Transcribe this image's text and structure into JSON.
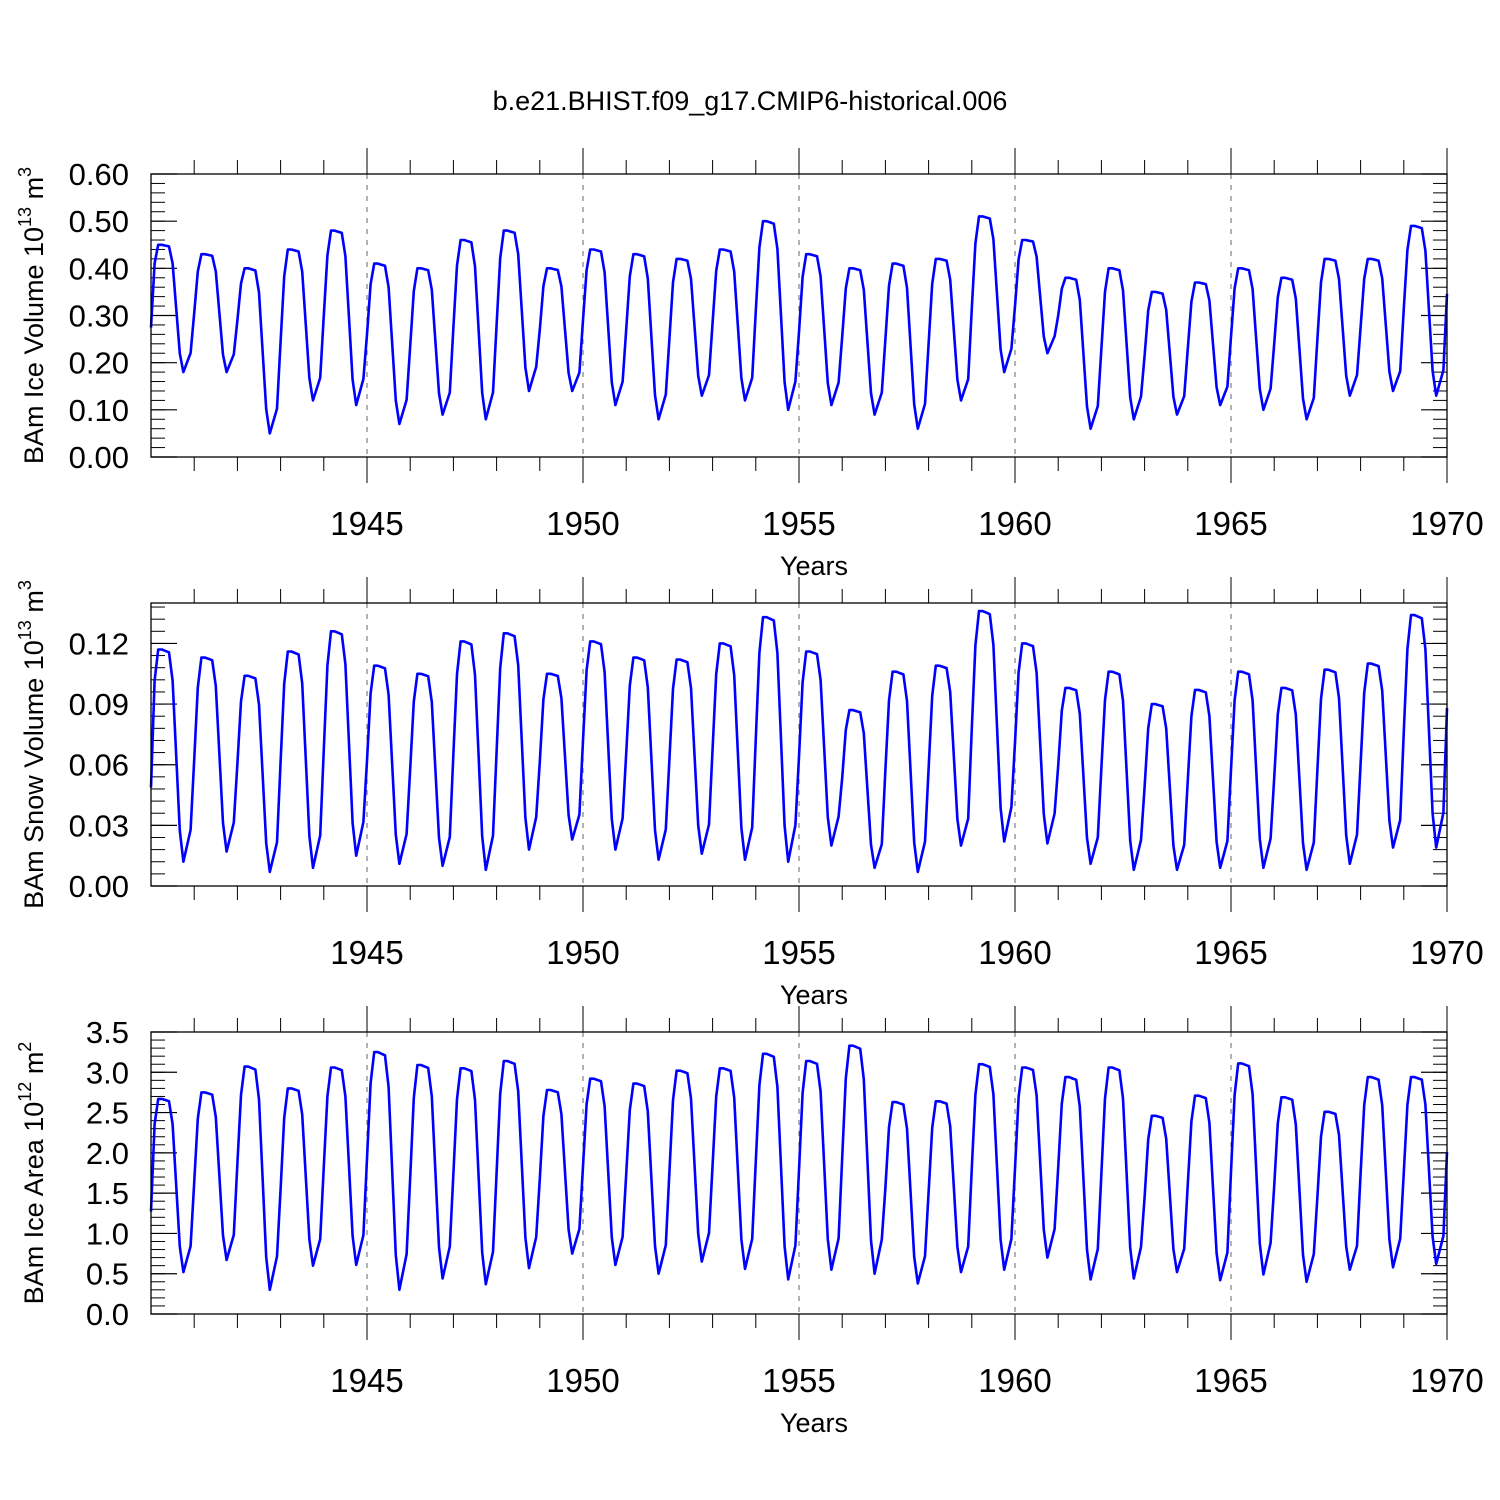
{
  "figure_title": "b.e21.BHIST.f09_g17.CMIP6-historical.006",
  "chart_data": [
    {
      "type": "line",
      "name": "ice-volume",
      "title": "",
      "xlabel": "Years",
      "ylabel": "BAm Ice Volume 10",
      "ylabel_exp": "13",
      "ylabel_unit": " m",
      "ylabel_unit_exp": "3",
      "xlim": [
        1940.0,
        1970.0
      ],
      "ylim": [
        0.0,
        0.6
      ],
      "yticks": [
        "0.00",
        "0.10",
        "0.20",
        "0.30",
        "0.40",
        "0.50",
        "0.60"
      ],
      "yminor_step": 0.02,
      "xticks": [
        "1945",
        "1950",
        "1955",
        "1960",
        "1965",
        "1970"
      ],
      "line_color": "#0000ff",
      "series": [
        {
          "name": "BAm Ice Volume",
          "mins": [
            0.18,
            0.18,
            0.05,
            0.12,
            0.11,
            0.07,
            0.09,
            0.08,
            0.14,
            0.14,
            0.11,
            0.08,
            0.13,
            0.12,
            0.1,
            0.11,
            0.09,
            0.06,
            0.12,
            0.18,
            0.22,
            0.06,
            0.08,
            0.09,
            0.11,
            0.1,
            0.08,
            0.13,
            0.14,
            0.13
          ],
          "maxs": [
            0.45,
            0.43,
            0.4,
            0.44,
            0.48,
            0.41,
            0.4,
            0.46,
            0.48,
            0.4,
            0.44,
            0.43,
            0.42,
            0.44,
            0.5,
            0.43,
            0.4,
            0.41,
            0.42,
            0.51,
            0.46,
            0.38,
            0.4,
            0.35,
            0.37,
            0.4,
            0.38,
            0.42,
            0.42,
            0.49
          ]
        }
      ]
    },
    {
      "type": "line",
      "name": "snow-volume",
      "title": "",
      "xlabel": "Years",
      "ylabel": "BAm Snow Volume 10",
      "ylabel_exp": "13",
      "ylabel_unit": " m",
      "ylabel_unit_exp": "3",
      "xlim": [
        1940.0,
        1970.0
      ],
      "ylim": [
        0.0,
        0.14
      ],
      "yticks": [
        "0.00",
        "0.03",
        "0.06",
        "0.09",
        "0.12"
      ],
      "yminor_step": 0.006,
      "xticks": [
        "1945",
        "1950",
        "1955",
        "1960",
        "1965",
        "1970"
      ],
      "line_color": "#0000ff",
      "series": [
        {
          "name": "BAm Snow Volume",
          "mins": [
            0.012,
            0.017,
            0.007,
            0.009,
            0.015,
            0.011,
            0.01,
            0.008,
            0.018,
            0.023,
            0.018,
            0.013,
            0.016,
            0.013,
            0.012,
            0.02,
            0.009,
            0.007,
            0.02,
            0.022,
            0.021,
            0.011,
            0.008,
            0.008,
            0.009,
            0.009,
            0.008,
            0.011,
            0.019,
            0.019
          ],
          "maxs": [
            0.117,
            0.113,
            0.104,
            0.116,
            0.126,
            0.109,
            0.105,
            0.121,
            0.125,
            0.105,
            0.121,
            0.113,
            0.112,
            0.12,
            0.133,
            0.116,
            0.087,
            0.106,
            0.109,
            0.136,
            0.12,
            0.098,
            0.106,
            0.09,
            0.097,
            0.106,
            0.098,
            0.107,
            0.11,
            0.134
          ]
        }
      ]
    },
    {
      "type": "line",
      "name": "ice-area",
      "title": "",
      "xlabel": "Years",
      "ylabel": "BAm Ice Area 10",
      "ylabel_exp": "12",
      "ylabel_unit": " m",
      "ylabel_unit_exp": "2",
      "xlim": [
        1940.0,
        1970.0
      ],
      "ylim": [
        0.0,
        3.5
      ],
      "yticks": [
        "0.0",
        "0.5",
        "1.0",
        "1.5",
        "2.0",
        "2.5",
        "3.0",
        "3.5"
      ],
      "yminor_step": 0.1,
      "xticks": [
        "1945",
        "1950",
        "1955",
        "1960",
        "1965",
        "1970"
      ],
      "line_color": "#0000ff",
      "series": [
        {
          "name": "BAm Ice Area",
          "mins": [
            0.52,
            0.67,
            0.3,
            0.6,
            0.61,
            0.3,
            0.44,
            0.37,
            0.57,
            0.75,
            0.61,
            0.5,
            0.65,
            0.56,
            0.43,
            0.55,
            0.5,
            0.38,
            0.52,
            0.55,
            0.7,
            0.43,
            0.44,
            0.52,
            0.42,
            0.49,
            0.4,
            0.55,
            0.58,
            0.62
          ],
          "maxs": [
            2.67,
            2.75,
            3.07,
            2.8,
            3.06,
            3.25,
            3.09,
            3.05,
            3.14,
            2.78,
            2.92,
            2.86,
            3.02,
            3.05,
            3.23,
            3.14,
            3.33,
            2.63,
            2.64,
            3.1,
            3.06,
            2.94,
            3.06,
            2.46,
            2.71,
            3.11,
            2.69,
            2.51,
            2.94,
            2.94
          ]
        }
      ]
    }
  ]
}
